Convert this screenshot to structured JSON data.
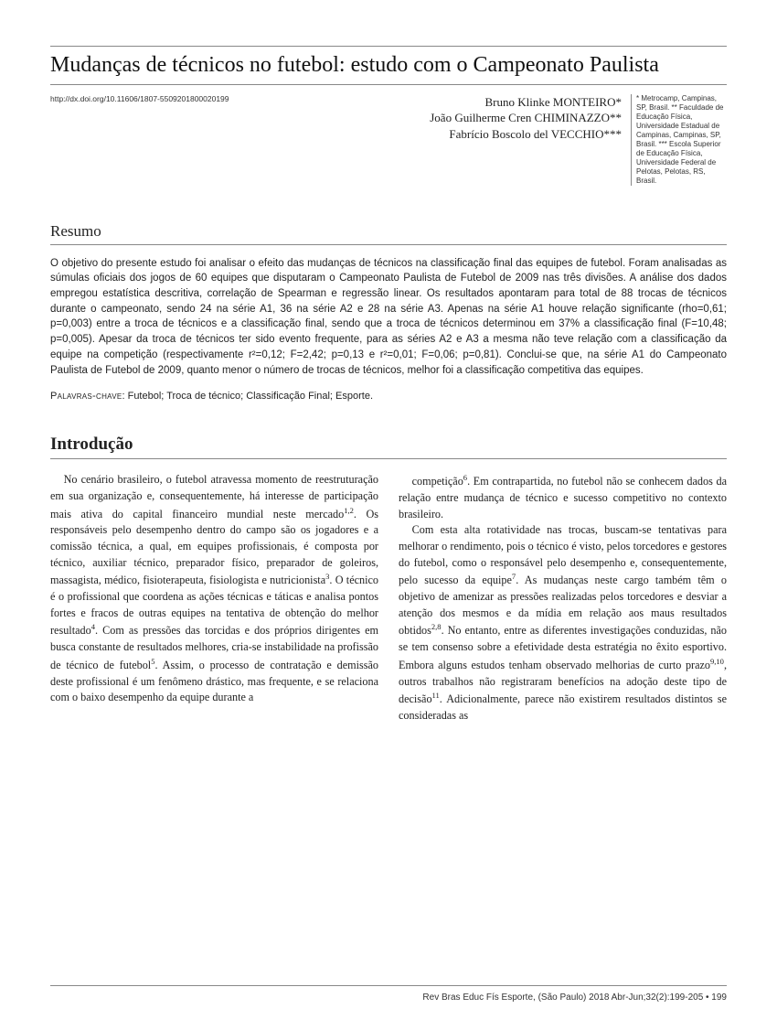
{
  "title": "Mudanças de técnicos no futebol: estudo com o Campeonato Paulista",
  "doi": "http://dx.doi.org/10.11606/1807-5509201800020199",
  "authors": {
    "a1": "Bruno Klinke MONTEIRO*",
    "a2": "João Guilherme Cren CHIMINAZZO**",
    "a3": "Fabrício Boscolo del VECCHIO***"
  },
  "affiliations": "* Metrocamp, Campinas, SP, Brasil. ** Faculdade de Educação Física, Universidade Estadual de Campinas, Campinas, SP, Brasil. *** Escola Superior de Educação Física, Universidade Federal de Pelotas, Pelotas, RS, Brasil.",
  "resumo_heading": "Resumo",
  "abstract": "O objetivo do presente estudo foi analisar o efeito das mudanças de técnicos na classificação final das equipes de futebol. Foram analisadas as súmulas oficiais dos jogos de 60 equipes que disputaram o Campeonato Paulista de Futebol de 2009 nas três divisões. A análise dos dados empregou estatística descritiva, correlação de Spearman e regressão linear. Os resultados apontaram para total de 88 trocas de técnicos durante o campeonato, sendo 24 na série A1, 36 na série A2 e 28 na série A3. Apenas na série A1 houve relação significante (rho=0,61; p=0,003) entre a troca de técnicos e a classificação final, sendo que a troca de técnicos determinou em 37% a classificação final (F=10,48; p=0,005). Apesar da troca de técnicos ter sido evento frequente, para as séries A2 e A3 a mesma não teve relação com a classificação da equipe na competição (respectivamente r²=0,12; F=2,42; p=0,13 e r²=0,01; F=0,06; p=0,81). Conclui-se que, na série A1 do Campeonato Paulista de Futebol de 2009, quanto menor o número de trocas de técnicos, melhor foi a classificação competitiva das equipes.",
  "keywords_label": "Palavras-chave",
  "keywords_value": ": Futebol; Troca de técnico; Classificação Final; Esporte.",
  "intro_heading": "Introdução",
  "col1_html": "No cenário brasileiro, o futebol atravessa momento de reestruturação em sua organização e, consequentemente, há interesse de participação mais ativa do capital financeiro mundial neste mercado<sup>1,2</sup>. Os responsáveis pelo desempenho dentro do campo são os jogadores e a comissão técnica, a qual, em equipes profissionais, é composta por técnico, auxiliar técnico, preparador físico, preparador de goleiros, massagista, médico, fisioterapeuta, fisiologista e nutricionista<sup>3</sup>. O técnico é o profissional que coordena as ações técnicas e táticas e analisa pontos fortes e fracos de outras equipes na tentativa de obtenção do melhor resultado<sup>4</sup>. Com as pressões das torcidas e dos próprios dirigentes em busca constante de resultados melhores, cria-se instabilidade na profissão de técnico de futebol<sup>5</sup>. Assim, o processo de contratação e demissão deste profissional é um fenômeno drástico, mas frequente, e se relaciona com o baixo desempenho da equipe durante a",
  "col2_p1_html": "competição<sup>6</sup>. Em contrapartida, no futebol não se conhecem dados da relação entre mudança de técnico e sucesso competitivo no contexto brasileiro.",
  "col2_p2_html": "Com esta alta rotatividade nas trocas, buscam-se tentativas para melhorar o rendimento, pois o técnico é visto, pelos torcedores e gestores do futebol, como o responsável pelo desempenho e, consequentemente, pelo sucesso da equipe<sup>7</sup>. As mudanças neste cargo também têm o objetivo de amenizar as pressões realizadas pelos torcedores e desviar a atenção dos mesmos e da mídia em relação aos maus resultados obtidos<sup>2,8</sup>. No entanto, entre as diferentes investigações conduzidas, não se tem consenso sobre a efetividade desta estratégia no êxito esportivo. Embora alguns estudos tenham observado melhorias de curto prazo<sup>9,10</sup>, outros trabalhos não registraram benefícios na adoção deste tipo de decisão<sup>11</sup>. Adicionalmente, parece não existirem resultados distintos se consideradas as",
  "footer": "Rev Bras Educ Fís Esporte, (São Paulo) 2018 Abr-Jun;32(2):199-205 • 199"
}
